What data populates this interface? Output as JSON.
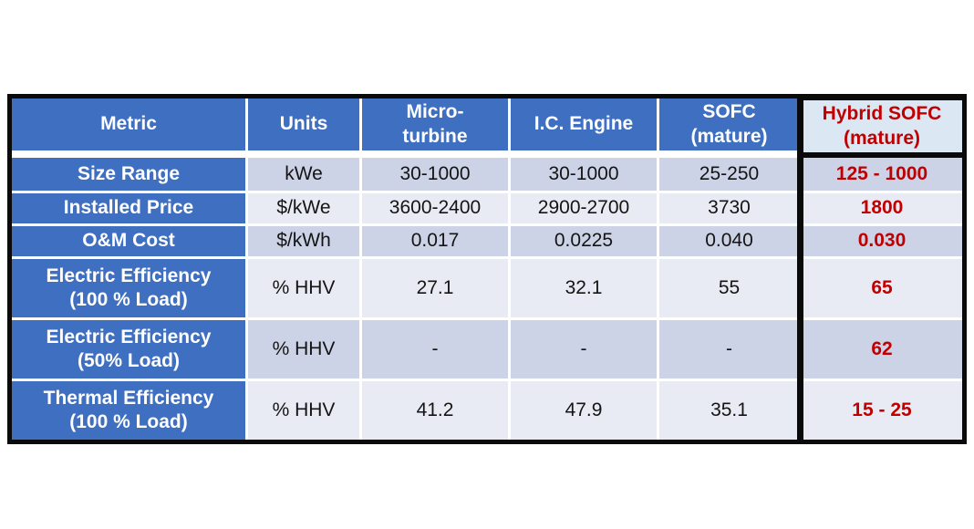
{
  "chart_data": {
    "type": "table",
    "title": "",
    "columns": [
      "Metric",
      "Units",
      "Micro-\nturbine",
      "I.C. Engine",
      "SOFC\n(mature)",
      "Hybrid SOFC\n(mature)"
    ],
    "rows": [
      [
        "Size Range",
        "kWe",
        "30-1000",
        "30-1000",
        "25-250",
        "125 - 1000"
      ],
      [
        "Installed Price",
        "$/kWe",
        "3600-2400",
        "2900-2700",
        "3730",
        "1800"
      ],
      [
        "O&M Cost",
        "$/kWh",
        "0.017",
        "0.0225",
        "0.040",
        "0.030"
      ],
      [
        "Electric Efficiency\n(100 % Load)",
        "% HHV",
        "27.1",
        "32.1",
        "55",
        "65"
      ],
      [
        "Electric Efficiency\n(50% Load)",
        "% HHV",
        "-",
        "-",
        "-",
        "62"
      ],
      [
        "Thermal Efficiency\n(100 % Load)",
        "% HHV",
        "41.2",
        "47.9",
        "35.1",
        "15 - 25"
      ]
    ],
    "highlight_column": "Hybrid SOFC (mature)",
    "layout": {
      "banding": "odd rows dark, even rows light",
      "header_style": "blue with white bold text",
      "highlight_style": "red bold values, thick black column border"
    }
  },
  "colors": {
    "header_blue": "#3e6fc1",
    "band_dark": "#cdd3e6",
    "band_light": "#e9ebf4",
    "hybrid_header_bg": "#dbe8f4",
    "hybrid_text_red": "#c00000",
    "border_black": "#0a0a0a",
    "header_text": "#ffffff",
    "data_text": "#141414"
  }
}
